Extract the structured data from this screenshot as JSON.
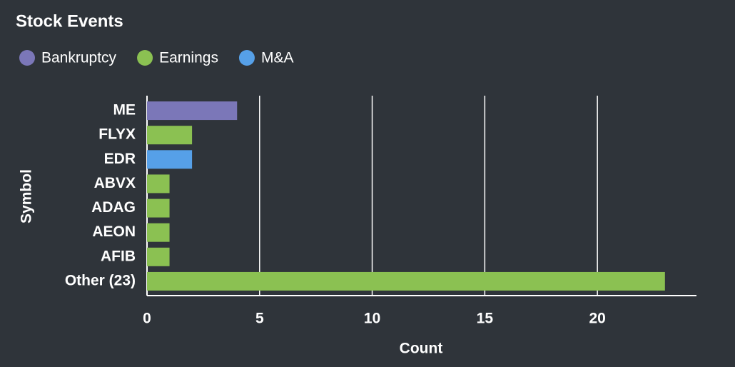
{
  "chart_data": {
    "type": "bar",
    "orientation": "horizontal",
    "title": "Stock Events",
    "categories": [
      "ME",
      "FLYX",
      "EDR",
      "ABVX",
      "ADAG",
      "AEON",
      "AFIB",
      "Other (23)"
    ],
    "series": [
      {
        "name": "Bankruptcy",
        "color": "#7b77b8",
        "values": [
          4,
          null,
          null,
          null,
          null,
          null,
          null,
          null
        ]
      },
      {
        "name": "Earnings",
        "color": "#8bc152",
        "values": [
          null,
          2,
          null,
          1,
          1,
          1,
          1,
          23
        ]
      },
      {
        "name": "M&A",
        "color": "#56a0e8",
        "values": [
          null,
          null,
          2,
          null,
          null,
          null,
          null,
          null
        ]
      }
    ],
    "x_label": "Count",
    "y_label": "Symbol",
    "xlim": [
      0,
      24.4
    ],
    "xticks": [
      0,
      5,
      10,
      15,
      20
    ],
    "grid": true
  }
}
